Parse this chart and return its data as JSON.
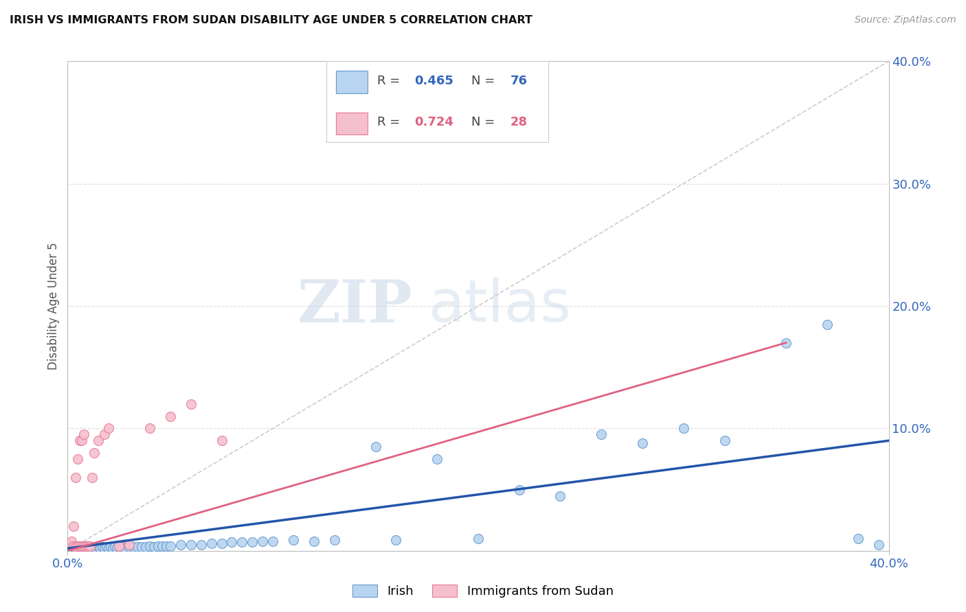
{
  "title": "IRISH VS IMMIGRANTS FROM SUDAN DISABILITY AGE UNDER 5 CORRELATION CHART",
  "source": "Source: ZipAtlas.com",
  "ylabel": "Disability Age Under 5",
  "xlim": [
    0.0,
    0.4
  ],
  "ylim": [
    0.0,
    0.4
  ],
  "xticks": [
    0.0,
    0.4
  ],
  "xtick_labels": [
    "0.0%",
    "40.0%"
  ],
  "yticks": [
    0.0,
    0.1,
    0.2,
    0.3,
    0.4
  ],
  "ytick_labels": [
    "",
    "10.0%",
    "20.0%",
    "30.0%",
    "40.0%"
  ],
  "irish_color": "#b8d4f0",
  "irish_edge_color": "#6699cc",
  "sudan_color": "#f5c0ce",
  "sudan_edge_color": "#e87898",
  "irish_line_color": "#2255aa",
  "sudan_line_color": "#e06080",
  "diag_line_color": "#cccccc",
  "R_irish": 0.465,
  "N_irish": 76,
  "R_sudan": 0.724,
  "N_sudan": 28,
  "legend_irish_label": "Irish",
  "legend_sudan_label": "Immigrants from Sudan",
  "watermark_zip": "ZIP",
  "watermark_atlas": "atlas",
  "irish_scatter_x": [
    0.001,
    0.002,
    0.002,
    0.003,
    0.003,
    0.004,
    0.004,
    0.005,
    0.005,
    0.006,
    0.006,
    0.007,
    0.007,
    0.008,
    0.008,
    0.009,
    0.009,
    0.01,
    0.01,
    0.011,
    0.011,
    0.012,
    0.013,
    0.014,
    0.015,
    0.016,
    0.017,
    0.018,
    0.019,
    0.02,
    0.021,
    0.022,
    0.023,
    0.024,
    0.025,
    0.026,
    0.027,
    0.028,
    0.03,
    0.032,
    0.034,
    0.036,
    0.038,
    0.04,
    0.042,
    0.044,
    0.046,
    0.048,
    0.05,
    0.055,
    0.06,
    0.065,
    0.07,
    0.075,
    0.08,
    0.085,
    0.09,
    0.095,
    0.1,
    0.11,
    0.12,
    0.13,
    0.15,
    0.16,
    0.18,
    0.2,
    0.22,
    0.24,
    0.26,
    0.28,
    0.3,
    0.32,
    0.35,
    0.37,
    0.385,
    0.395
  ],
  "irish_scatter_y": [
    0.003,
    0.002,
    0.004,
    0.001,
    0.003,
    0.002,
    0.004,
    0.001,
    0.003,
    0.002,
    0.004,
    0.001,
    0.003,
    0.002,
    0.004,
    0.001,
    0.003,
    0.002,
    0.004,
    0.002,
    0.003,
    0.001,
    0.003,
    0.002,
    0.003,
    0.002,
    0.003,
    0.002,
    0.003,
    0.002,
    0.003,
    0.002,
    0.003,
    0.002,
    0.003,
    0.002,
    0.003,
    0.002,
    0.003,
    0.003,
    0.003,
    0.003,
    0.003,
    0.004,
    0.003,
    0.004,
    0.004,
    0.004,
    0.004,
    0.005,
    0.005,
    0.005,
    0.006,
    0.006,
    0.007,
    0.007,
    0.007,
    0.008,
    0.008,
    0.009,
    0.008,
    0.009,
    0.085,
    0.009,
    0.075,
    0.01,
    0.05,
    0.045,
    0.095,
    0.088,
    0.1,
    0.09,
    0.17,
    0.185,
    0.01,
    0.005
  ],
  "sudan_scatter_x": [
    0.001,
    0.002,
    0.003,
    0.003,
    0.004,
    0.004,
    0.005,
    0.005,
    0.006,
    0.006,
    0.007,
    0.007,
    0.008,
    0.008,
    0.009,
    0.01,
    0.011,
    0.012,
    0.013,
    0.015,
    0.018,
    0.02,
    0.025,
    0.03,
    0.04,
    0.05,
    0.06,
    0.075
  ],
  "sudan_scatter_y": [
    0.005,
    0.008,
    0.004,
    0.02,
    0.003,
    0.06,
    0.004,
    0.075,
    0.004,
    0.09,
    0.004,
    0.09,
    0.004,
    0.095,
    0.004,
    0.004,
    0.004,
    0.06,
    0.08,
    0.09,
    0.095,
    0.1,
    0.004,
    0.005,
    0.1,
    0.11,
    0.12,
    0.09
  ]
}
